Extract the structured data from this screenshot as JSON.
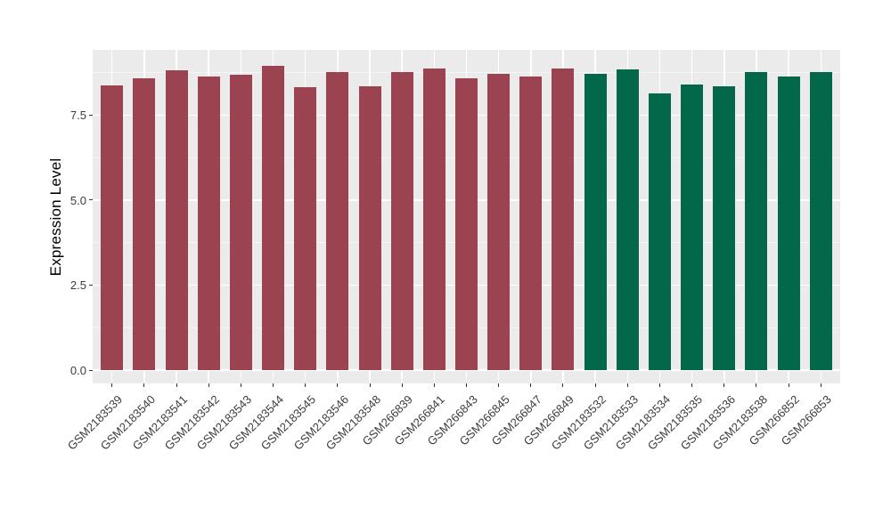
{
  "chart_data": {
    "type": "bar",
    "title": "",
    "xlabel": "",
    "ylabel": "Expression Level",
    "legend_position": "none",
    "grid": true,
    "y_axis": {
      "ticks": [
        0,
        2.5,
        5,
        7.5
      ],
      "tick_labels": [
        "0.0",
        "2.5",
        "5.0",
        "7.5"
      ],
      "minor_ticks": [
        1.25,
        3.75,
        6.25,
        8.75
      ],
      "range_shown": [
        -0.4,
        9.4
      ]
    },
    "categories": [
      "GSM2183539",
      "GSM2183540",
      "GSM2183541",
      "GSM2183542",
      "GSM2183543",
      "GSM2183544",
      "GSM2183545",
      "GSM2183546",
      "GSM2183548",
      "GSM266839",
      "GSM266841",
      "GSM266843",
      "GSM266845",
      "GSM266847",
      "GSM266849",
      "GSM2183532",
      "GSM2183533",
      "GSM2183534",
      "GSM2183535",
      "GSM2183536",
      "GSM2183538",
      "GSM266852",
      "GSM266853"
    ],
    "values": [
      8.38,
      8.57,
      8.82,
      8.62,
      8.69,
      8.95,
      8.32,
      8.77,
      8.35,
      8.75,
      8.88,
      8.59,
      8.7,
      8.64,
      8.88,
      8.7,
      8.83,
      8.14,
      8.4,
      8.35,
      8.77,
      8.62,
      8.76
    ],
    "bar_groups": [
      "group1",
      "group1",
      "group1",
      "group1",
      "group1",
      "group1",
      "group1",
      "group1",
      "group1",
      "group1",
      "group1",
      "group1",
      "group1",
      "group1",
      "group1",
      "group2",
      "group2",
      "group2",
      "group2",
      "group2",
      "group2",
      "group2",
      "group2"
    ],
    "group_colors": {
      "group1": "#9C4352",
      "group2": "#03684A"
    },
    "panel_background": "#EBEBEB",
    "grid_major_color": "#FFFFFF",
    "grid_minor_color": "rgba(255,255,255,0.55)"
  }
}
